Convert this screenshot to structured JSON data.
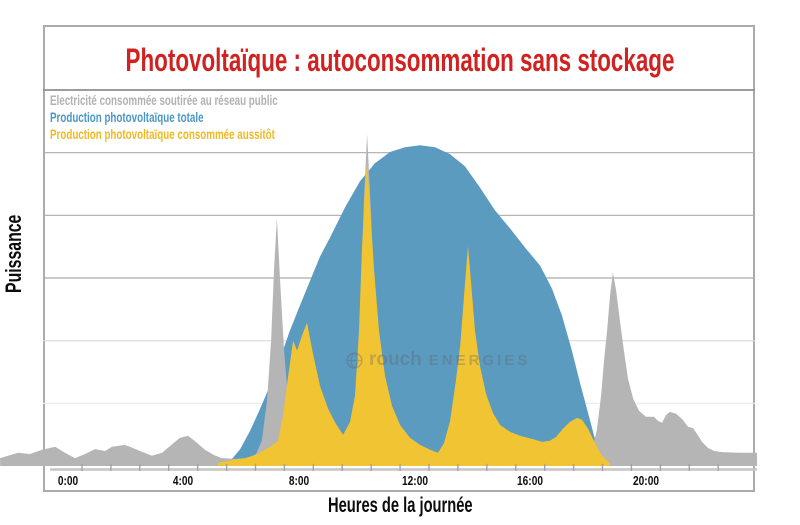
{
  "title": {
    "text": "Photovoltaïque : autoconsommation sans stockage"
  },
  "colors": {
    "title_red": "#d02321",
    "pv_total_blue": "#5b9bbf",
    "pv_consumed_yellow": "#f1c433",
    "grid_power_gray": "#b5b5b5"
  },
  "legend": [
    {
      "label": "Electricité consommée soutirée au réseau public",
      "color": "#b2b2b2"
    },
    {
      "label": "Production photovoltaïque totale",
      "color": "#4b97c5"
    },
    {
      "label": "Production photovoltaïque consommée aussitôt",
      "color": "#f0b822"
    }
  ],
  "axes": {
    "x_label": "Heures de la journée",
    "y_label": "Puissance"
  },
  "watermark": {
    "icon": "globe-icon",
    "word1": "rouch",
    "word2": "ENERGIES"
  },
  "chart_data": {
    "type": "area",
    "title": "Photovoltaïque : autoconsommation sans stockage",
    "xlabel": "Heures de la journée",
    "ylabel": "Puissance",
    "x_unit": "hours_of_day",
    "xlim": [
      -2.35,
      23.85
    ],
    "ylim": [
      0,
      100
    ],
    "grid": true,
    "legend_position": "top-left",
    "x_ticks": [
      {
        "t": 0,
        "label": "0:00"
      },
      {
        "t": 4,
        "label": "4:00"
      },
      {
        "t": 8,
        "label": "8:00"
      },
      {
        "t": 12,
        "label": "12:00"
      },
      {
        "t": 16,
        "label": "16:00"
      },
      {
        "t": 20,
        "label": "20:00"
      }
    ],
    "minor_tick_every_hours": 1,
    "gridlines_y": [
      {
        "v": 100,
        "color": "#8f8f8f",
        "w": 1.8
      },
      {
        "v": 83.33,
        "color": "#ababab",
        "w": 1.2
      },
      {
        "v": 66.67,
        "color": "#ababab",
        "w": 1.2
      },
      {
        "v": 50,
        "color": "#ababab",
        "w": 1.2
      },
      {
        "v": 33.33,
        "color": "#dadada",
        "w": 1.2
      },
      {
        "v": 16.67,
        "color": "#eaeaea",
        "w": 1.2
      }
    ],
    "series": [
      {
        "name": "Production photovoltaïque totale",
        "color": "#5b9bbf",
        "points": [
          [
            5.5,
            0.2
          ],
          [
            5.97,
            4.5
          ],
          [
            6.31,
            9.3
          ],
          [
            6.66,
            15.2
          ],
          [
            7.0,
            21.3
          ],
          [
            7.35,
            28.5
          ],
          [
            7.69,
            36
          ],
          [
            8.04,
            42.7
          ],
          [
            8.39,
            49.3
          ],
          [
            8.73,
            55.7
          ],
          [
            9.08,
            60.8
          ],
          [
            9.6,
            68.8
          ],
          [
            10.11,
            75.7
          ],
          [
            10.63,
            80.5
          ],
          [
            11.15,
            83.5
          ],
          [
            11.67,
            84.8
          ],
          [
            12.19,
            85.3
          ],
          [
            12.71,
            84.8
          ],
          [
            13.23,
            82.9
          ],
          [
            13.74,
            79.7
          ],
          [
            14.26,
            74.1
          ],
          [
            14.78,
            68
          ],
          [
            15.3,
            63.2
          ],
          [
            15.82,
            58.1
          ],
          [
            16.34,
            53.3
          ],
          [
            16.75,
            47.2
          ],
          [
            17.1,
            40
          ],
          [
            17.44,
            30.7
          ],
          [
            17.72,
            22.1
          ],
          [
            18.0,
            14.1
          ],
          [
            18.21,
            8
          ],
          [
            18.41,
            2.7
          ],
          [
            18.55,
            0.3
          ]
        ]
      },
      {
        "name": "Electricité consommée soutirée au réseau public",
        "color": "#b5b5b5",
        "points": [
          [
            -2.33,
            2.1
          ],
          [
            -1.71,
            3.5
          ],
          [
            -1.3,
            3.2
          ],
          [
            -0.88,
            4.3
          ],
          [
            -0.43,
            5.1
          ],
          [
            -0.09,
            3.5
          ],
          [
            0.26,
            2.1
          ],
          [
            0.61,
            3.2
          ],
          [
            0.95,
            4.5
          ],
          [
            1.3,
            4.0
          ],
          [
            1.54,
            5.1
          ],
          [
            1.99,
            5.6
          ],
          [
            2.51,
            4.0
          ],
          [
            2.92,
            2.7
          ],
          [
            3.27,
            3.5
          ],
          [
            3.54,
            5.3
          ],
          [
            3.89,
            7.5
          ],
          [
            4.17,
            8.0
          ],
          [
            4.44,
            6.4
          ],
          [
            4.75,
            4.3
          ],
          [
            5.07,
            2.9
          ],
          [
            5.34,
            2.1
          ],
          [
            5.79,
            1.9
          ],
          [
            6.24,
            2.1
          ],
          [
            6.52,
            3.2
          ],
          [
            6.72,
            6.7
          ],
          [
            6.9,
            17.3
          ],
          [
            7.04,
            33.3
          ],
          [
            7.14,
            52
          ],
          [
            7.24,
            65.9
          ],
          [
            7.35,
            49.3
          ],
          [
            7.49,
            30.7
          ],
          [
            7.66,
            14.7
          ],
          [
            7.87,
            6.1
          ],
          [
            8.11,
            3.5
          ],
          [
            8.45,
            2.4
          ],
          [
            9.08,
            2.4
          ],
          [
            9.7,
            2.7
          ],
          [
            9.94,
            6.7
          ],
          [
            10.11,
            33.3
          ],
          [
            10.25,
            70.7
          ],
          [
            10.36,
            88.3
          ],
          [
            10.49,
            68
          ],
          [
            10.67,
            28
          ],
          [
            10.84,
            6.7
          ],
          [
            11.08,
            3.2
          ],
          [
            11.5,
            2.4
          ],
          [
            14.26,
            2.4
          ],
          [
            16.68,
            2.1
          ],
          [
            17.44,
            2.4
          ],
          [
            17.82,
            2.9
          ],
          [
            18.13,
            4.3
          ],
          [
            18.3,
            9.3
          ],
          [
            18.45,
            18.7
          ],
          [
            18.55,
            28
          ],
          [
            18.66,
            36
          ],
          [
            18.76,
            45.3
          ],
          [
            18.86,
            51.5
          ],
          [
            18.97,
            46.7
          ],
          [
            19.1,
            38.7
          ],
          [
            19.24,
            30.7
          ],
          [
            19.38,
            23.2
          ],
          [
            19.56,
            17.9
          ],
          [
            19.76,
            14.7
          ],
          [
            20.0,
            13.1
          ],
          [
            20.28,
            13.1
          ],
          [
            20.42,
            12
          ],
          [
            20.56,
            11.5
          ],
          [
            20.7,
            13.6
          ],
          [
            20.83,
            14.4
          ],
          [
            21.04,
            13.9
          ],
          [
            21.25,
            12.5
          ],
          [
            21.46,
            10.4
          ],
          [
            21.63,
            10.1
          ],
          [
            21.77,
            8.5
          ],
          [
            21.94,
            6.4
          ],
          [
            22.15,
            4.8
          ],
          [
            22.36,
            4
          ],
          [
            22.63,
            3.7
          ],
          [
            23.26,
            3.5
          ],
          [
            23.84,
            3.5
          ]
        ]
      },
      {
        "name": "Production photovoltaïque consommée aussitôt",
        "color": "#f1c433",
        "points": [
          [
            5.2,
            0.8
          ],
          [
            5.69,
            1.6
          ],
          [
            6.14,
            2.1
          ],
          [
            6.48,
            2.9
          ],
          [
            6.76,
            4
          ],
          [
            7.04,
            5.3
          ],
          [
            7.28,
            6.7
          ],
          [
            7.45,
            13.3
          ],
          [
            7.63,
            24
          ],
          [
            7.8,
            33.3
          ],
          [
            7.94,
            30.7
          ],
          [
            8.11,
            34.7
          ],
          [
            8.28,
            38.1
          ],
          [
            8.49,
            29.9
          ],
          [
            8.73,
            21.3
          ],
          [
            9.01,
            15.2
          ],
          [
            9.28,
            11.2
          ],
          [
            9.53,
            8.3
          ],
          [
            9.77,
            11.7
          ],
          [
            9.94,
            18.7
          ],
          [
            10.08,
            36
          ],
          [
            10.18,
            57.3
          ],
          [
            10.29,
            74.7
          ],
          [
            10.36,
            80.5
          ],
          [
            10.46,
            69.3
          ],
          [
            10.6,
            52
          ],
          [
            10.77,
            36
          ],
          [
            10.98,
            24
          ],
          [
            11.22,
            16
          ],
          [
            11.5,
            10.9
          ],
          [
            11.84,
            7.5
          ],
          [
            12.19,
            5.6
          ],
          [
            12.54,
            4.3
          ],
          [
            12.81,
            3.5
          ],
          [
            13.02,
            6.1
          ],
          [
            13.23,
            12
          ],
          [
            13.43,
            22.7
          ],
          [
            13.58,
            32
          ],
          [
            13.75,
            49.3
          ],
          [
            13.85,
            58.4
          ],
          [
            13.95,
            49.3
          ],
          [
            14.09,
            36
          ],
          [
            14.26,
            26.7
          ],
          [
            14.47,
            19.2
          ],
          [
            14.71,
            14.1
          ],
          [
            14.96,
            10.9
          ],
          [
            15.3,
            9.1
          ],
          [
            15.65,
            8
          ],
          [
            16.06,
            7.2
          ],
          [
            16.41,
            6.4
          ],
          [
            16.68,
            6.7
          ],
          [
            16.89,
            7.7
          ],
          [
            17.13,
            9.9
          ],
          [
            17.37,
            11.7
          ],
          [
            17.62,
            12.8
          ],
          [
            17.79,
            12.3
          ],
          [
            18.0,
            9.9
          ],
          [
            18.17,
            7.2
          ],
          [
            18.34,
            4.5
          ],
          [
            18.55,
            2.1
          ],
          [
            18.76,
            0.8
          ]
        ]
      }
    ]
  }
}
